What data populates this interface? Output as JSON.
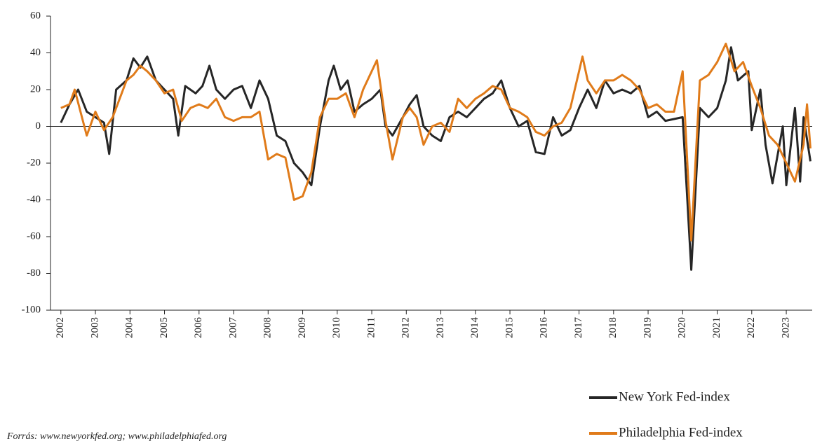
{
  "chart_data": {
    "type": "line",
    "xlim": [
      2001.7,
      2023.75
    ],
    "xticks": [
      2002,
      2003,
      2004,
      2005,
      2006,
      2007,
      2008,
      2009,
      2010,
      2011,
      2012,
      2013,
      2014,
      2015,
      2016,
      2017,
      2018,
      2019,
      2020,
      2021,
      2022,
      2023
    ],
    "ylim": [
      -100,
      60
    ],
    "yticks": [
      -100,
      -80,
      -60,
      -40,
      -20,
      0,
      20,
      40,
      60
    ],
    "source": "Forrás: www.newyorkfed.org; www.philadelphiafed.org",
    "legend": "bottom-right",
    "series": [
      {
        "name": "New York Fed-index",
        "color": "#262626",
        "x": [
          2002.0,
          2002.25,
          2002.5,
          2002.75,
          2003.0,
          2003.25,
          2003.4,
          2003.6,
          2003.9,
          2004.1,
          2004.3,
          2004.5,
          2004.75,
          2005.0,
          2005.25,
          2005.4,
          2005.6,
          2005.9,
          2006.1,
          2006.3,
          2006.5,
          2006.75,
          2007.0,
          2007.25,
          2007.5,
          2007.75,
          2008.0,
          2008.25,
          2008.5,
          2008.75,
          2009.0,
          2009.25,
          2009.5,
          2009.75,
          2009.9,
          2010.1,
          2010.3,
          2010.5,
          2010.75,
          2011.0,
          2011.25,
          2011.4,
          2011.6,
          2011.9,
          2012.1,
          2012.3,
          2012.5,
          2012.75,
          2013.0,
          2013.25,
          2013.5,
          2013.75,
          2014.0,
          2014.25,
          2014.5,
          2014.75,
          2015.0,
          2015.25,
          2015.5,
          2015.75,
          2016.0,
          2016.25,
          2016.5,
          2016.75,
          2017.0,
          2017.25,
          2017.5,
          2017.75,
          2018.0,
          2018.25,
          2018.5,
          2018.75,
          2019.0,
          2019.25,
          2019.5,
          2019.75,
          2020.0,
          2020.25,
          2020.5,
          2020.75,
          2021.0,
          2021.25,
          2021.4,
          2021.6,
          2021.9,
          2022.0,
          2022.25,
          2022.4,
          2022.6,
          2022.9,
          2023.0,
          2023.25,
          2023.4,
          2023.5,
          2023.7
        ],
        "values": [
          2,
          12,
          20,
          8,
          5,
          2,
          -15,
          20,
          25,
          37,
          32,
          38,
          25,
          20,
          15,
          -5,
          22,
          18,
          22,
          33,
          20,
          15,
          20,
          22,
          10,
          25,
          15,
          -5,
          -8,
          -20,
          -25,
          -32,
          0,
          25,
          33,
          20,
          25,
          8,
          12,
          15,
          20,
          0,
          -5,
          5,
          12,
          17,
          0,
          -5,
          -8,
          5,
          8,
          5,
          10,
          15,
          18,
          25,
          10,
          0,
          3,
          -14,
          -15,
          5,
          -5,
          -2,
          10,
          20,
          10,
          25,
          18,
          20,
          18,
          22,
          5,
          8,
          3,
          4,
          5,
          -78,
          10,
          5,
          10,
          25,
          43,
          25,
          30,
          -2,
          20,
          -10,
          -31,
          0,
          -32,
          10,
          -30,
          5,
          -19
        ]
      },
      {
        "name": "Philadelphia Fed-index",
        "color": "#e07b1a",
        "x": [
          2002.0,
          2002.25,
          2002.4,
          2002.75,
          2003.0,
          2003.25,
          2003.5,
          2003.9,
          2004.1,
          2004.3,
          2004.5,
          2004.75,
          2005.0,
          2005.25,
          2005.5,
          2005.75,
          2006.0,
          2006.25,
          2006.5,
          2006.75,
          2007.0,
          2007.25,
          2007.5,
          2007.75,
          2008.0,
          2008.25,
          2008.5,
          2008.75,
          2009.0,
          2009.25,
          2009.5,
          2009.75,
          2010.0,
          2010.25,
          2010.5,
          2010.75,
          2011.0,
          2011.15,
          2011.4,
          2011.6,
          2011.9,
          2012.1,
          2012.3,
          2012.5,
          2012.75,
          2013.0,
          2013.25,
          2013.5,
          2013.75,
          2014.0,
          2014.25,
          2014.5,
          2014.75,
          2015.0,
          2015.25,
          2015.5,
          2015.75,
          2016.0,
          2016.25,
          2016.5,
          2016.75,
          2017.0,
          2017.1,
          2017.25,
          2017.5,
          2017.75,
          2018.0,
          2018.25,
          2018.5,
          2018.75,
          2019.0,
          2019.25,
          2019.5,
          2019.75,
          2020.0,
          2020.25,
          2020.5,
          2020.75,
          2021.0,
          2021.25,
          2021.5,
          2021.75,
          2022.0,
          2022.25,
          2022.5,
          2022.75,
          2023.0,
          2023.25,
          2023.5,
          2023.6,
          2023.7
        ],
        "values": [
          10,
          12,
          20,
          -5,
          8,
          -2,
          5,
          25,
          28,
          33,
          30,
          25,
          18,
          20,
          3,
          10,
          12,
          10,
          15,
          5,
          3,
          5,
          5,
          8,
          -18,
          -15,
          -17,
          -40,
          -38,
          -25,
          5,
          15,
          15,
          18,
          5,
          20,
          30,
          36,
          3,
          -18,
          5,
          10,
          5,
          -10,
          0,
          2,
          -3,
          15,
          10,
          15,
          18,
          22,
          20,
          10,
          8,
          5,
          -3,
          -5,
          0,
          2,
          10,
          30,
          38,
          25,
          18,
          25,
          25,
          28,
          25,
          20,
          10,
          12,
          8,
          8,
          30,
          -62,
          25,
          28,
          35,
          45,
          30,
          35,
          22,
          10,
          -5,
          -10,
          -20,
          -30,
          -10,
          12,
          -12
        ]
      }
    ]
  }
}
